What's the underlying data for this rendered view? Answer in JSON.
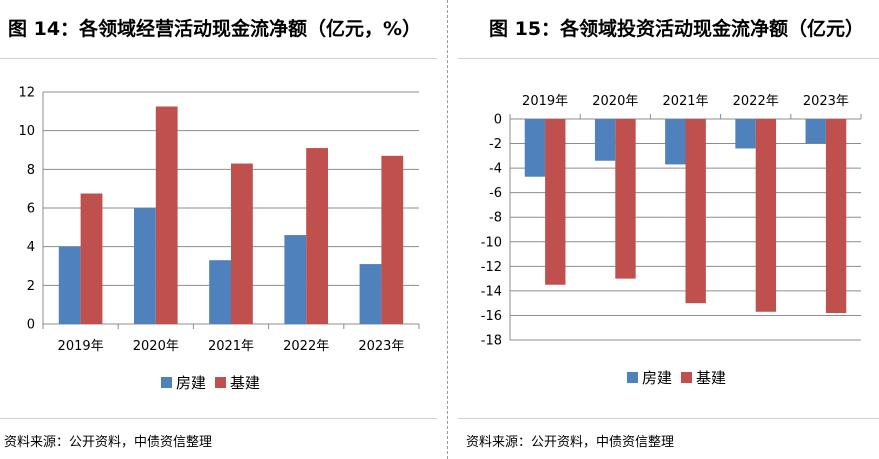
{
  "left": {
    "title": "图 14：各领域经营活动现金流净额（亿元，%）",
    "source": "资料来源：公开资料，中债资信整理",
    "chart_data": {
      "type": "bar",
      "categories": [
        "2019年",
        "2020年",
        "2021年",
        "2022年",
        "2023年"
      ],
      "series": [
        {
          "name": "房建",
          "color": "#4F81BD",
          "values": [
            4.0,
            6.0,
            3.3,
            4.6,
            3.1
          ]
        },
        {
          "name": "基建",
          "color": "#C0504D",
          "values": [
            6.75,
            11.25,
            8.3,
            9.1,
            8.7
          ]
        }
      ],
      "ylim": [
        0,
        12
      ],
      "yticks": [
        0,
        2,
        4,
        6,
        8,
        10,
        12
      ],
      "grid": true,
      "legend": "bottom"
    }
  },
  "right": {
    "title": "图 15：各领域投资活动现金流净额（亿元）",
    "source": "资料来源：公开资料，中债资信整理",
    "chart_data": {
      "type": "bar",
      "categories": [
        "2019年",
        "2020年",
        "2021年",
        "2022年",
        "2023年"
      ],
      "series": [
        {
          "name": "房建",
          "color": "#4F81BD",
          "values": [
            -4.7,
            -3.4,
            -3.7,
            -2.4,
            -2.0
          ]
        },
        {
          "name": "基建",
          "color": "#C0504D",
          "values": [
            -13.5,
            -13.0,
            -15.0,
            -15.7,
            -15.8
          ]
        }
      ],
      "ylim": [
        -18,
        0
      ],
      "yticks": [
        0,
        -2,
        -4,
        -6,
        -8,
        -10,
        -12,
        -14,
        -16,
        -18
      ],
      "grid": true,
      "category_labels": "top",
      "legend": "bottom"
    }
  }
}
